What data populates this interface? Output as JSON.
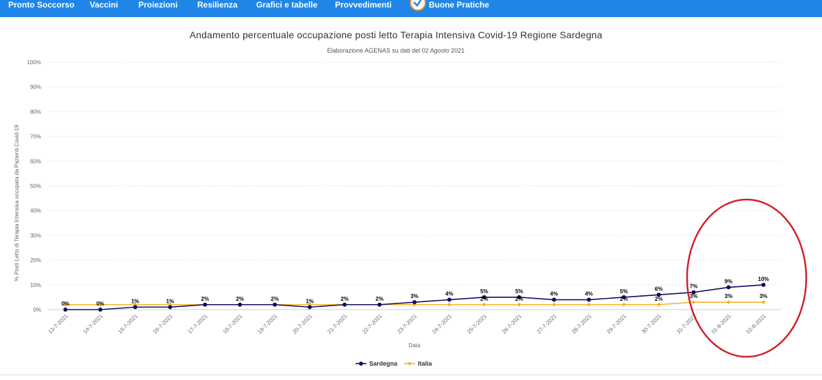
{
  "nav": {
    "items": [
      "Pronto Soccorso",
      "Vaccini",
      "Proiezioni",
      "Resilienza",
      "Grafici e tabelle",
      "Provvedimenti",
      "Buone Pratiche"
    ]
  },
  "chart_data": {
    "type": "line",
    "title": "Andamento percentuale occupazione posti letto Terapia Intensiva Covid-19 Regione Sardegna",
    "subtitle": "Elaborazione AGENAS su dati del 02 Agosto 2021",
    "xlabel": "Data",
    "ylabel": "% Posti Letto di Terapia Intensiva occupata da Pazienti Covid-19",
    "ylim": [
      0,
      100
    ],
    "yticks": [
      0,
      10,
      20,
      30,
      40,
      50,
      60,
      70,
      80,
      90,
      100
    ],
    "ytick_labels": [
      "0%",
      "10%",
      "20%",
      "30%",
      "40%",
      "50%",
      "60%",
      "70%",
      "80%",
      "90%",
      "100%"
    ],
    "grid": true,
    "legend_position": "bottom-center",
    "categories": [
      "13-7-2021",
      "14-7-2021",
      "15-7-2021",
      "16-7-2021",
      "17-7-2021",
      "18-7-2021",
      "19-7-2021",
      "20-7-2021",
      "21-7-2021",
      "22-7-2021",
      "23-7-2021",
      "24-7-2021",
      "25-7-2021",
      "26-7-2021",
      "27-7-2021",
      "28-7-2021",
      "29-7-2021",
      "30-7-2021",
      "31-7-2021",
      "01-8-2021",
      "02-8-2021"
    ],
    "series": [
      {
        "name": "Sardegna",
        "color": "#0d0d5e",
        "values": [
          0,
          0,
          1,
          1,
          2,
          2,
          2,
          1,
          2,
          2,
          3,
          4,
          5,
          5,
          4,
          4,
          5,
          6,
          7,
          9,
          10
        ],
        "labels": [
          "0%",
          "0%",
          "1%",
          "1%",
          "2%",
          "2%",
          "2%",
          "1%",
          "2%",
          "2%",
          "3%",
          "4%",
          "5%",
          "5%",
          "4%",
          "4%",
          "5%",
          "6%",
          "7%",
          "9%",
          "10%"
        ]
      },
      {
        "name": "Italia",
        "color": "#f3b42a",
        "values": [
          2,
          2,
          2,
          2,
          2,
          2,
          2,
          2,
          2,
          2,
          2,
          2,
          2,
          2,
          2,
          2,
          2,
          2,
          3,
          3,
          3
        ],
        "labels": [
          "",
          "",
          "",
          "",
          "",
          "",
          "",
          "",
          "",
          "",
          "",
          "",
          "2%",
          "2%",
          "",
          "",
          "2%",
          "2%",
          "3%",
          "3%",
          "3%"
        ]
      }
    ],
    "annotation": {
      "shape": "ellipse",
      "color": "#d0202a",
      "highlights": [
        "31-7-2021",
        "01-8-2021",
        "02-8-2021"
      ]
    }
  }
}
